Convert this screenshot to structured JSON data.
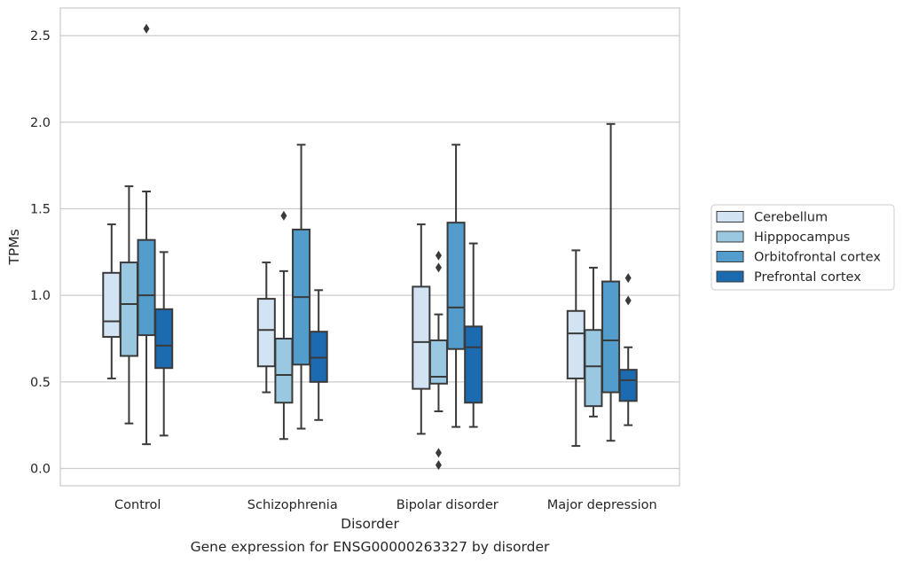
{
  "caption": "Gene expression for ENSG00000263327 by disorder",
  "chart_data": {
    "type": "box",
    "xlabel": "Disorder",
    "ylabel": "TPMs",
    "ylim": [
      -0.1,
      2.66
    ],
    "yticks": [
      0.0,
      0.5,
      1.0,
      1.5,
      2.0,
      2.5
    ],
    "ytick_labels": [
      "0.0",
      "0.5",
      "1.0",
      "1.5",
      "2.0",
      "2.5"
    ],
    "grid": "horizontal",
    "legend_position": "center-right outside",
    "categories": [
      "Control",
      "Schizophrenia",
      "Bipolar disorder",
      "Major depression"
    ],
    "series": [
      {
        "name": "Cerebellum",
        "color": "#d2e3f3",
        "boxes": [
          {
            "whislo": 0.52,
            "q1": 0.76,
            "med": 0.85,
            "q3": 1.13,
            "whishi": 1.41,
            "fliers": []
          },
          {
            "whislo": 0.44,
            "q1": 0.59,
            "med": 0.8,
            "q3": 0.98,
            "whishi": 1.19,
            "fliers": []
          },
          {
            "whislo": 0.2,
            "q1": 0.46,
            "med": 0.73,
            "q3": 1.05,
            "whishi": 1.41,
            "fliers": []
          },
          {
            "whislo": 0.13,
            "q1": 0.52,
            "med": 0.78,
            "q3": 0.91,
            "whishi": 1.26,
            "fliers": []
          }
        ]
      },
      {
        "name": "Hipppocampus",
        "color": "#9ac8e0",
        "boxes": [
          {
            "whislo": 0.26,
            "q1": 0.65,
            "med": 0.95,
            "q3": 1.19,
            "whishi": 1.63,
            "fliers": []
          },
          {
            "whislo": 0.17,
            "q1": 0.38,
            "med": 0.54,
            "q3": 0.75,
            "whishi": 1.14,
            "fliers": [
              1.46
            ]
          },
          {
            "whislo": 0.33,
            "q1": 0.49,
            "med": 0.53,
            "q3": 0.74,
            "whishi": 0.89,
            "fliers": [
              1.23,
              1.16,
              0.09,
              0.02
            ]
          },
          {
            "whislo": 0.3,
            "q1": 0.36,
            "med": 0.59,
            "q3": 0.8,
            "whishi": 1.16,
            "fliers": []
          }
        ]
      },
      {
        "name": "Orbitofrontal cortex",
        "color": "#529dcc",
        "boxes": [
          {
            "whislo": 0.14,
            "q1": 0.77,
            "med": 1.0,
            "q3": 1.32,
            "whishi": 1.6,
            "fliers": [
              2.54
            ]
          },
          {
            "whislo": 0.23,
            "q1": 0.6,
            "med": 0.99,
            "q3": 1.38,
            "whishi": 1.87,
            "fliers": []
          },
          {
            "whislo": 0.24,
            "q1": 0.69,
            "med": 0.93,
            "q3": 1.42,
            "whishi": 1.87,
            "fliers": []
          },
          {
            "whislo": 0.16,
            "q1": 0.44,
            "med": 0.74,
            "q3": 1.08,
            "whishi": 1.99,
            "fliers": []
          }
        ]
      },
      {
        "name": "Prefrontal cortex",
        "color": "#1c6aaf",
        "boxes": [
          {
            "whislo": 0.19,
            "q1": 0.58,
            "med": 0.71,
            "q3": 0.92,
            "whishi": 1.25,
            "fliers": []
          },
          {
            "whislo": 0.28,
            "q1": 0.5,
            "med": 0.64,
            "q3": 0.79,
            "whishi": 1.03,
            "fliers": []
          },
          {
            "whislo": 0.24,
            "q1": 0.38,
            "med": 0.7,
            "q3": 0.82,
            "whishi": 1.3,
            "fliers": []
          },
          {
            "whislo": 0.25,
            "q1": 0.39,
            "med": 0.51,
            "q3": 0.57,
            "whishi": 0.7,
            "fliers": [
              1.1,
              0.97
            ]
          }
        ]
      }
    ]
  }
}
